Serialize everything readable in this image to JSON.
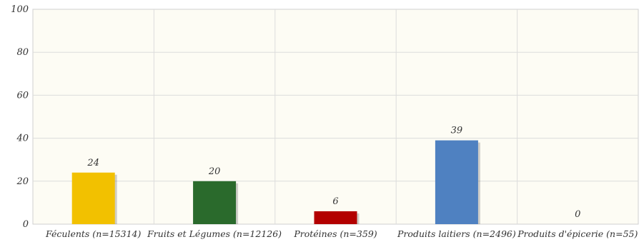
{
  "chart_data": {
    "type": "bar",
    "categories": [
      "Féculents (n=15314)",
      "Fruits et Légumes (n=12126)",
      "Protéines (n=359)",
      "Produits laitiers (n=2496)",
      "Produits d'épicerie (n=55)"
    ],
    "values": [
      24,
      20,
      6,
      39,
      0
    ],
    "value_labels": [
      "24",
      "20",
      "6",
      "39",
      "0"
    ],
    "colors": [
      "#f2c100",
      "#2a6a2c",
      "#b30000",
      "#4f81c1",
      "#999999"
    ],
    "ylim": [
      0,
      100
    ],
    "yticks": [
      0,
      20,
      40,
      60,
      80,
      100
    ],
    "ytick_labels": [
      "0",
      "20",
      "40",
      "60",
      "80",
      "100"
    ],
    "grid": true,
    "plot_background": "#fdfcf4",
    "grid_color": "#dcdcdc"
  }
}
